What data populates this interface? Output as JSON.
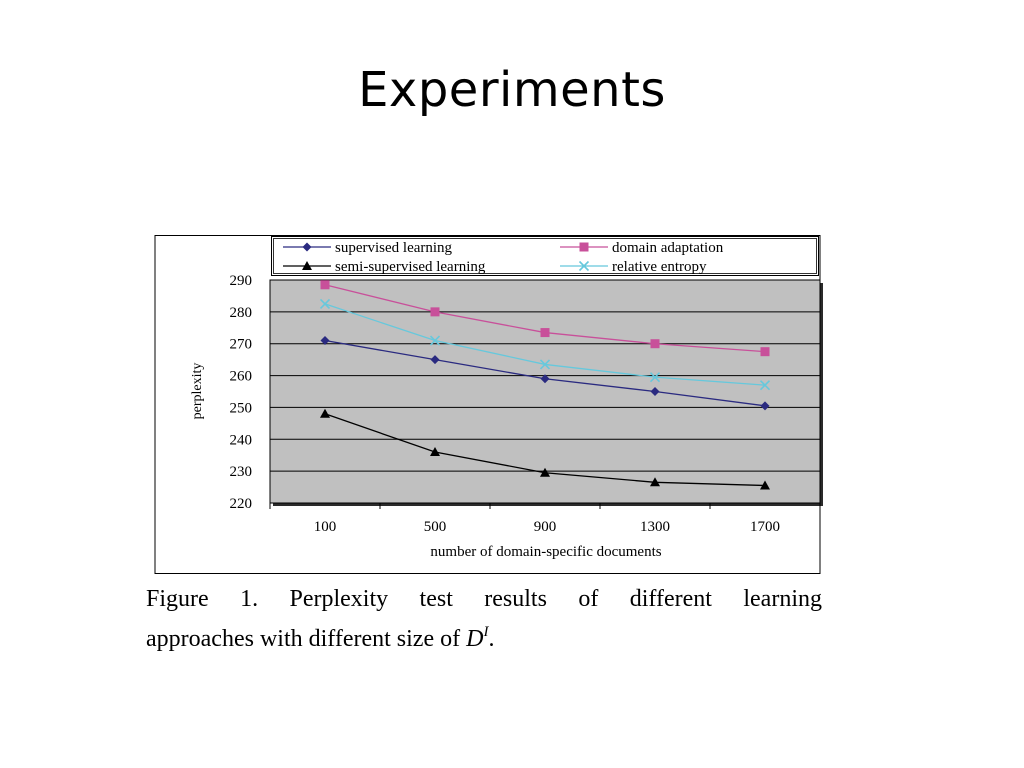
{
  "slide": {
    "title": "Experiments"
  },
  "caption": {
    "words_line1": [
      "Figure",
      "1.",
      "Perplexity",
      "test",
      "results",
      "of",
      "different",
      "learning"
    ],
    "line2_text": "approaches with different size of",
    "symbol_base": "D",
    "symbol_sup": "I",
    "line2_end": "."
  },
  "chart_data": {
    "type": "line",
    "categories": [
      "100",
      "500",
      "900",
      "1300",
      "1700"
    ],
    "xlabel": "number of domain-specific documents",
    "ylabel": "perplexity",
    "ylim": [
      220,
      290
    ],
    "yticks": [
      220,
      230,
      240,
      250,
      260,
      270,
      280,
      290
    ],
    "grid": true,
    "plot_background": "#c0c0c0",
    "legend_placement": "top",
    "series": [
      {
        "name": "supervised learning",
        "values": [
          271,
          265,
          259,
          255,
          250.5
        ],
        "color": "#2a2a80",
        "marker": "diamond"
      },
      {
        "name": "domain adaptation",
        "values": [
          288.5,
          280,
          273.5,
          270,
          267.5
        ],
        "color": "#c8509a",
        "marker": "square"
      },
      {
        "name": "semi-supervised learning",
        "values": [
          248,
          236,
          229.5,
          226.5,
          225.5
        ],
        "color": "#000000",
        "marker": "triangle"
      },
      {
        "name": "relative entropy",
        "values": [
          282.5,
          271,
          263.5,
          259.5,
          257
        ],
        "color": "#66c8dc",
        "marker": "x"
      }
    ]
  }
}
